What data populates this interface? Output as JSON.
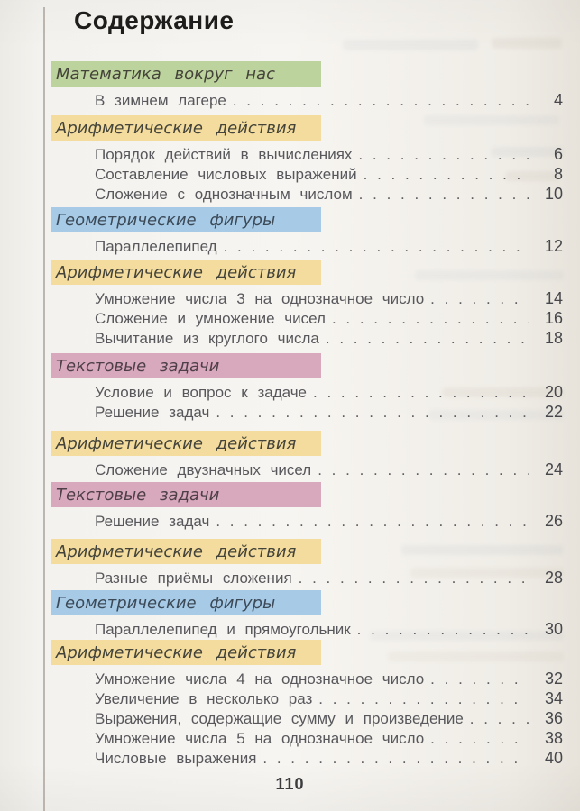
{
  "page": {
    "title": "Содержание",
    "footer_page_number": "110"
  },
  "colors": {
    "banner_green": "#bdd39d",
    "banner_yellow": "#f3dc9e",
    "banner_blue": "#a7cbe7",
    "banner_pink": "#d8a9bd",
    "banner_text": "#45443a",
    "entry_text": "#58585c",
    "leader_dots": "#5e5e62"
  },
  "toc": {
    "sections": [
      {
        "heading": "Математика вокруг нас",
        "color": "green",
        "entries": [
          {
            "label": "В зимнем лагере",
            "page": "4"
          }
        ]
      },
      {
        "heading": "Арифметические действия",
        "color": "yellow",
        "entries": [
          {
            "label": "Порядок действий в вычислениях",
            "page": "6"
          },
          {
            "label": "Составление числовых выражений",
            "page": "8"
          },
          {
            "label": "Сложение с однозначным числом",
            "page": "10"
          }
        ]
      },
      {
        "heading": "Геометрические фигуры",
        "color": "blue",
        "entries": [
          {
            "label": "Параллелепипед",
            "page": "12"
          }
        ]
      },
      {
        "heading": "Арифметические действия",
        "color": "yellow",
        "entries": [
          {
            "label": "Умножение числа 3 на однозначное число",
            "page": "14"
          },
          {
            "label": "Сложение и умножение чисел",
            "page": "16"
          },
          {
            "label": "Вычитание из круглого числа",
            "page": "18"
          }
        ]
      },
      {
        "heading": "Текстовые задачи",
        "color": "pink",
        "entries": [
          {
            "label": "Условие и вопрос к задаче",
            "page": "20"
          },
          {
            "label": "Решение задач",
            "page": "22"
          }
        ]
      },
      {
        "heading": "Арифметические действия",
        "color": "yellow",
        "entries": [
          {
            "label": "Сложение двузначных чисел",
            "page": "24"
          }
        ]
      },
      {
        "heading": "Текстовые задачи",
        "color": "pink",
        "entries": [
          {
            "label": "Решение задач",
            "page": "26"
          }
        ]
      },
      {
        "heading": "Арифметические действия",
        "color": "yellow",
        "entries": [
          {
            "label": "Разные приёмы сложения",
            "page": "28"
          }
        ]
      },
      {
        "heading": "Геометрические фигуры",
        "color": "blue",
        "entries": [
          {
            "label": "Параллелепипед и прямоугольник",
            "page": "30"
          }
        ]
      },
      {
        "heading": "Арифметические действия",
        "color": "yellow",
        "entries": [
          {
            "label": "Умножение числа 4 на однозначное число",
            "page": "32"
          },
          {
            "label": "Увеличение в несколько раз",
            "page": "34"
          },
          {
            "label": "Выражения, содержащие сумму и произведение",
            "page": "36"
          },
          {
            "label": "Умножение числа 5 на однозначное число",
            "page": "38"
          },
          {
            "label": "Числовые выражения",
            "page": "40"
          }
        ]
      }
    ]
  }
}
